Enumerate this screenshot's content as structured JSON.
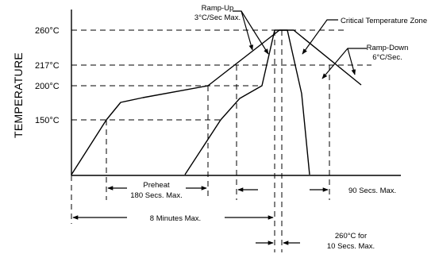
{
  "y_axis_title": "TEMPERATURE",
  "temperature_levels": [
    "260°C",
    "217°C",
    "200°C",
    "150°C"
  ],
  "annotations": {
    "ramp_up": [
      "Ramp-Up",
      "3°C/Sec Max."
    ],
    "critical_zone": "Critical Temperature Zone",
    "ramp_down": [
      "Ramp-Down",
      "6°C/Sec."
    ],
    "preheat": [
      "Preheat",
      "180 Secs. Max."
    ],
    "total_time": "8 Minutes Max.",
    "above_217": "90 Secs. Max.",
    "peak_hold": [
      "260°C for",
      "10 Secs. Max."
    ]
  },
  "colors": {
    "line": "#000000",
    "background": "#ffffff"
  }
}
